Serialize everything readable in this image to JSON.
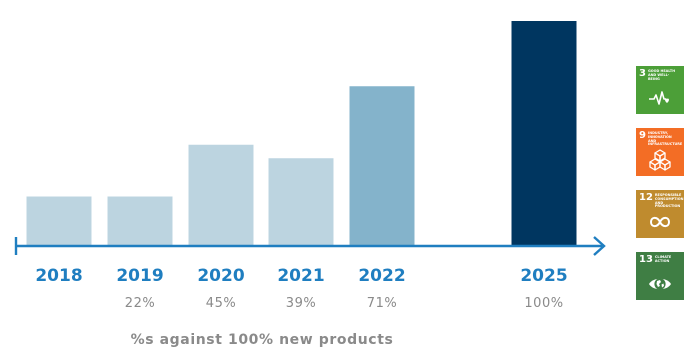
{
  "chart_data": {
    "type": "bar",
    "categories": [
      "2018",
      "2019",
      "2020",
      "2021",
      "2022",
      "2025"
    ],
    "values": [
      22,
      22,
      45,
      39,
      71,
      100
    ],
    "data_labels": [
      "",
      "22%",
      "45%",
      "39%",
      "71%",
      "100%"
    ],
    "bar_colors": [
      "#bcd4e0",
      "#bcd4e0",
      "#bcd4e0",
      "#bcd4e0",
      "#84b3cb",
      "#003660"
    ],
    "ylim": [
      0,
      100
    ],
    "grid": false,
    "footnote": "%s against 100% new products",
    "category_color": "#1f7ec0",
    "label_color": "#8a8a8a",
    "axis_color": "#1f7ec0"
  },
  "sdg_tiles": [
    {
      "number": "3",
      "text": "Good health and well-being",
      "color": "#4c9f38",
      "icon": "heartbeat-icon"
    },
    {
      "number": "9",
      "text": "Industry, innovation and infrastructure",
      "color": "#f36d25",
      "icon": "cubes-icon"
    },
    {
      "number": "12",
      "text": "Responsible consumption and production",
      "color": "#bf8b2e",
      "icon": "infinity-icon"
    },
    {
      "number": "13",
      "text": "Climate action",
      "color": "#3f7e44",
      "icon": "eye-globe-icon"
    }
  ]
}
